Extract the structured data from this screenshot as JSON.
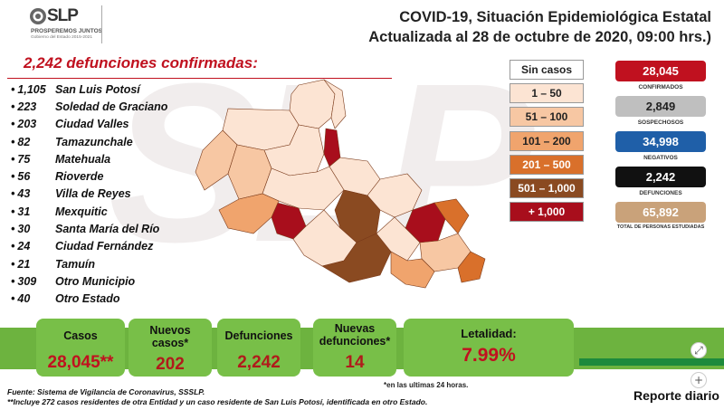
{
  "header": {
    "logo_text": "SLP",
    "logo_tagline": "PROSPEREMOS JUNTOS",
    "logo_subtitle": "Gobierno del Estado 2015-2021",
    "title_line1": "COVID-19, Situación Epidemiológica Estatal",
    "title_line2": "Actualizada al 28 de octubre de 2020, 09:00 hrs.)"
  },
  "deaths": {
    "heading": "2,242 defunciones confirmadas:",
    "items": [
      {
        "count": "1,105",
        "name": "San Luis Potosí"
      },
      {
        "count": "223",
        "name": "Soledad de Graciano"
      },
      {
        "count": "203",
        "name": "Ciudad Valles"
      },
      {
        "count": "82",
        "name": "Tamazunchale"
      },
      {
        "count": "75",
        "name": "Matehuala"
      },
      {
        "count": "56",
        "name": "Rioverde"
      },
      {
        "count": "43",
        "name": "Villa de Reyes"
      },
      {
        "count": "31",
        "name": "Mexquitic"
      },
      {
        "count": "30",
        "name": "Santa María del Río"
      },
      {
        "count": "24",
        "name": "Ciudad Fernández"
      },
      {
        "count": "21",
        "name": "Tamuín"
      },
      {
        "count": "309",
        "name": "Otro Municipio"
      },
      {
        "count": "40",
        "name": "Otro Estado"
      }
    ]
  },
  "legend": [
    {
      "label": "Sin casos",
      "color": "#ffffff",
      "text_color": "#222222"
    },
    {
      "label": "1 – 50",
      "color": "#fce4d3",
      "text_color": "#222222"
    },
    {
      "label": "51 – 100",
      "color": "#f7c7a3",
      "text_color": "#222222"
    },
    {
      "label": "101 – 200",
      "color": "#f0a46d",
      "text_color": "#222222"
    },
    {
      "label": "201 – 500",
      "color": "#d9702b",
      "text_color": "#ffffff"
    },
    {
      "label": "501 – 1,000",
      "color": "#8a4a21",
      "text_color": "#ffffff"
    },
    {
      "label": "+ 1,000",
      "color": "#a80e1c",
      "text_color": "#ffffff"
    }
  ],
  "stats": [
    {
      "value": "28,045",
      "label": "CONFIRMADOS",
      "color": "#c0111f"
    },
    {
      "value": "2,849",
      "label": "SOSPECHOSOS",
      "color": "#bfbfbf"
    },
    {
      "value": "34,998",
      "label": "NEGATIVOS",
      "color": "#1f5fa8"
    },
    {
      "value": "2,242",
      "label": "DEFUNCIONES",
      "color": "#111111"
    },
    {
      "value": "65,892",
      "label": "TOTAL DE PERSONAS ESTUDIADAS",
      "color": "#c9a27a"
    }
  ],
  "kpis": {
    "casos": {
      "label": "Casos",
      "value": "28,045**"
    },
    "nuevos_casos": {
      "label": "Nuevos casos*",
      "value": "202"
    },
    "defunciones": {
      "label": "Defunciones",
      "value": "2,242"
    },
    "nuevas_defunciones": {
      "label": "Nuevas defunciones*",
      "value": "14"
    },
    "letalidad": {
      "label": "Letalidad:",
      "value": "7.99%"
    }
  },
  "footer": {
    "note_24h": "*en las ultimas 24 horas.",
    "source": "Fuente: Sistema de Vigilancia de Coronavirus, SSSLP.",
    "note_residents": "**Incluye 272 casos residentes de otra Entidad y un caso residente de San Luis Potosí, identificada en otro Estado.",
    "report": "Reporte diario"
  },
  "controls": {
    "expand_glyph": "⤢",
    "zoom_glyph": "+"
  },
  "watermark": "SLP",
  "colors": {
    "accent_red": "#c0111f",
    "band_green": "#6db33f",
    "kpi_green": "#78bf48",
    "dark_green": "#1d8a3c"
  }
}
